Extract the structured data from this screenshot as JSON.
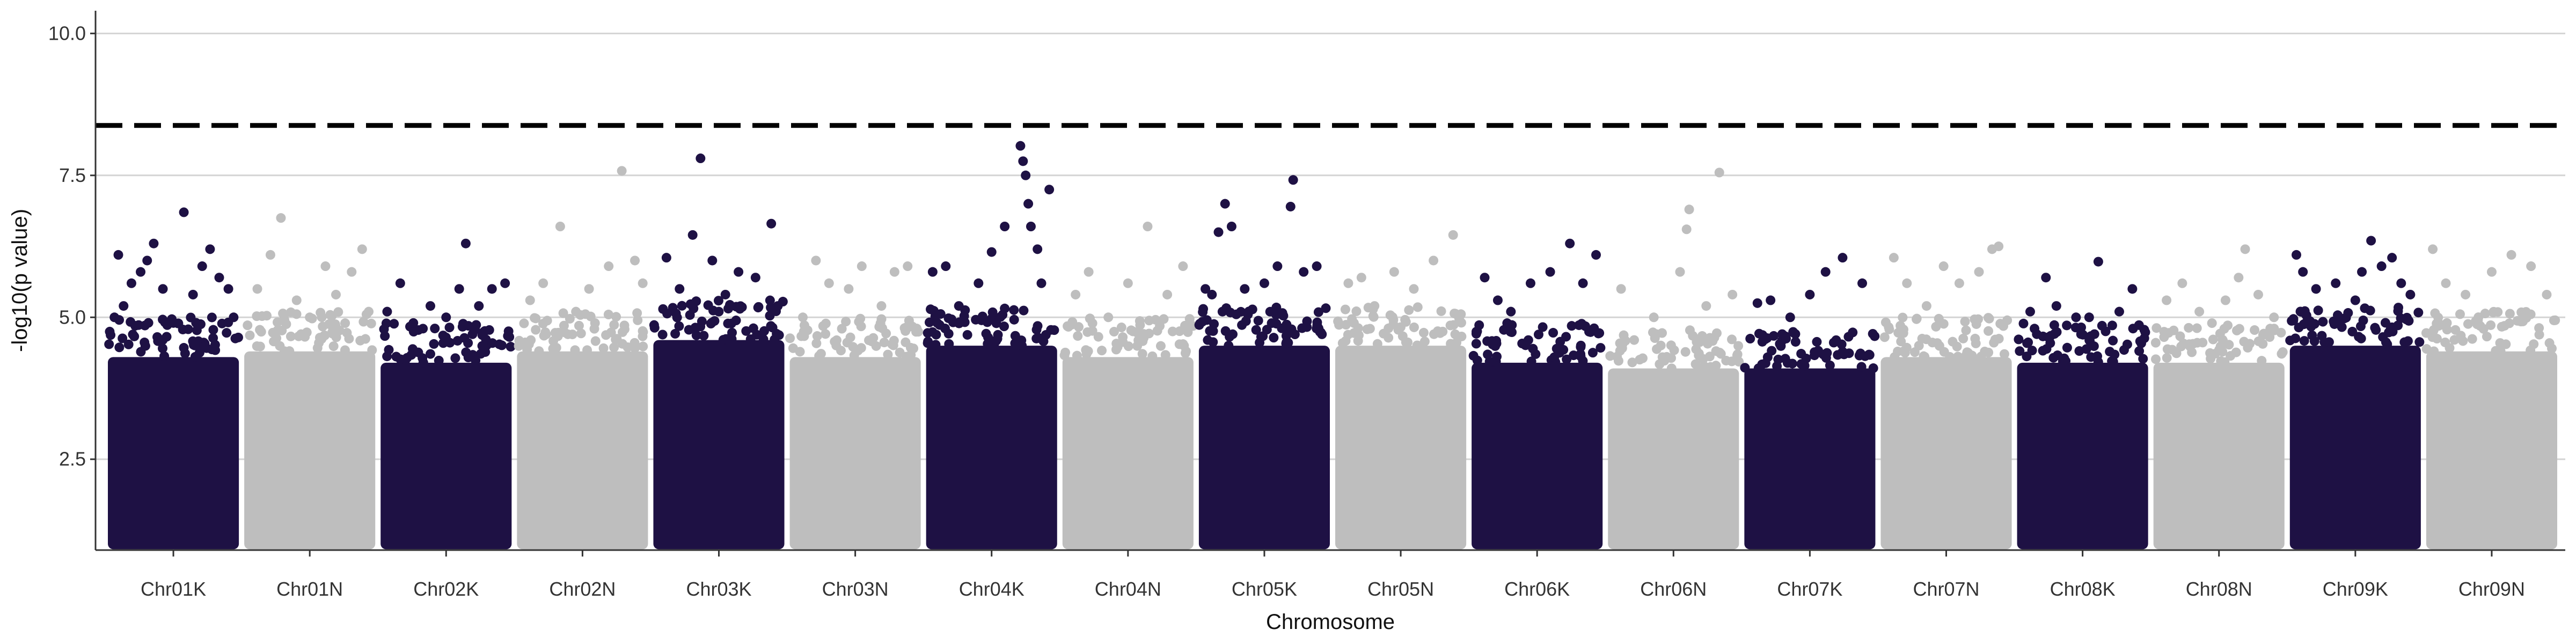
{
  "chart_data": {
    "type": "scatter",
    "subtype": "manhattan",
    "title": "",
    "xlabel": "Chromosome",
    "ylabel": "-log10(p value)",
    "ylim": [
      0.9,
      10.4
    ],
    "yticks": [
      2.5,
      5.0,
      7.5,
      10.0
    ],
    "ytick_labels": [
      "2.5",
      "5.0",
      "7.5",
      "10.0"
    ],
    "grid": "horizontal",
    "legend": "none",
    "threshold": 8.38,
    "threshold_style": "dashed",
    "base_value": 1.0,
    "colors": {
      "dark": "#1e1144",
      "light": "#bebebe",
      "threshold": "#000000",
      "grid": "#d4d4d4",
      "axis": "#333333"
    },
    "categories": [
      "Chr01K",
      "Chr01N",
      "Chr02K",
      "Chr02N",
      "Chr03K",
      "Chr03N",
      "Chr04K",
      "Chr04N",
      "Chr05K",
      "Chr05N",
      "Chr06K",
      "Chr06N",
      "Chr07K",
      "Chr07N",
      "Chr08K",
      "Chr08N",
      "Chr09K",
      "Chr09N"
    ],
    "series": [
      {
        "name": "Chr01K",
        "color": "dark",
        "bulk_top": 4.3,
        "points": [
          [
            0.05,
            5.0
          ],
          [
            0.08,
            6.1
          ],
          [
            0.12,
            5.2
          ],
          [
            0.18,
            5.6
          ],
          [
            0.25,
            5.8
          ],
          [
            0.3,
            6.0
          ],
          [
            0.35,
            6.3
          ],
          [
            0.42,
            5.5
          ],
          [
            0.5,
            4.9
          ],
          [
            0.58,
            6.85
          ],
          [
            0.65,
            5.4
          ],
          [
            0.72,
            5.9
          ],
          [
            0.78,
            6.2
          ],
          [
            0.85,
            5.7
          ],
          [
            0.92,
            5.5
          ],
          [
            0.96,
            5.0
          ]
        ]
      },
      {
        "name": "Chr01N",
        "color": "light",
        "bulk_top": 4.4,
        "points": [
          [
            0.1,
            5.5
          ],
          [
            0.2,
            6.1
          ],
          [
            0.28,
            6.75
          ],
          [
            0.4,
            5.3
          ],
          [
            0.5,
            5.0
          ],
          [
            0.62,
            5.9
          ],
          [
            0.7,
            5.4
          ],
          [
            0.82,
            5.8
          ],
          [
            0.9,
            6.2
          ],
          [
            0.95,
            5.1
          ]
        ]
      },
      {
        "name": "Chr02K",
        "color": "dark",
        "bulk_top": 4.2,
        "points": [
          [
            0.05,
            5.1
          ],
          [
            0.15,
            5.6
          ],
          [
            0.25,
            4.9
          ],
          [
            0.38,
            5.2
          ],
          [
            0.5,
            5.0
          ],
          [
            0.6,
            5.5
          ],
          [
            0.65,
            6.3
          ],
          [
            0.75,
            5.2
          ],
          [
            0.85,
            5.5
          ],
          [
            0.95,
            5.6
          ]
        ]
      },
      {
        "name": "Chr02N",
        "color": "light",
        "bulk_top": 4.4,
        "points": [
          [
            0.1,
            5.3
          ],
          [
            0.2,
            5.6
          ],
          [
            0.33,
            6.6
          ],
          [
            0.45,
            5.1
          ],
          [
            0.55,
            5.5
          ],
          [
            0.7,
            5.9
          ],
          [
            0.8,
            7.58
          ],
          [
            0.9,
            6.0
          ],
          [
            0.96,
            5.6
          ]
        ]
      },
      {
        "name": "Chr03K",
        "color": "dark",
        "bulk_top": 4.6,
        "points": [
          [
            0.1,
            6.05
          ],
          [
            0.2,
            5.5
          ],
          [
            0.3,
            6.45
          ],
          [
            0.36,
            7.8
          ],
          [
            0.45,
            6.0
          ],
          [
            0.55,
            5.4
          ],
          [
            0.65,
            5.8
          ],
          [
            0.78,
            5.7
          ],
          [
            0.9,
            6.65
          ],
          [
            0.95,
            5.2
          ]
        ]
      },
      {
        "name": "Chr03N",
        "color": "light",
        "bulk_top": 4.3,
        "points": [
          [
            0.1,
            5.0
          ],
          [
            0.2,
            6.0
          ],
          [
            0.3,
            5.6
          ],
          [
            0.45,
            5.5
          ],
          [
            0.55,
            5.9
          ],
          [
            0.7,
            5.2
          ],
          [
            0.8,
            5.8
          ],
          [
            0.9,
            5.9
          ]
        ]
      },
      {
        "name": "Chr04K",
        "color": "dark",
        "bulk_top": 4.5,
        "points": [
          [
            0.05,
            5.8
          ],
          [
            0.15,
            5.9
          ],
          [
            0.25,
            5.2
          ],
          [
            0.4,
            5.6
          ],
          [
            0.5,
            6.15
          ],
          [
            0.6,
            6.6
          ],
          [
            0.72,
            8.02
          ],
          [
            0.74,
            7.75
          ],
          [
            0.76,
            7.5
          ],
          [
            0.78,
            7.0
          ],
          [
            0.8,
            6.6
          ],
          [
            0.85,
            6.2
          ],
          [
            0.88,
            5.6
          ],
          [
            0.94,
            7.25
          ]
        ]
      },
      {
        "name": "Chr04N",
        "color": "light",
        "bulk_top": 4.3,
        "points": [
          [
            0.1,
            5.4
          ],
          [
            0.2,
            5.8
          ],
          [
            0.35,
            5.0
          ],
          [
            0.5,
            5.6
          ],
          [
            0.65,
            6.6
          ],
          [
            0.8,
            5.4
          ],
          [
            0.92,
            5.9
          ]
        ]
      },
      {
        "name": "Chr05K",
        "color": "dark",
        "bulk_top": 4.5,
        "points": [
          [
            0.05,
            5.5
          ],
          [
            0.1,
            5.4
          ],
          [
            0.15,
            6.5
          ],
          [
            0.2,
            7.0
          ],
          [
            0.25,
            6.6
          ],
          [
            0.35,
            5.5
          ],
          [
            0.5,
            5.6
          ],
          [
            0.6,
            5.9
          ],
          [
            0.7,
            6.95
          ],
          [
            0.72,
            7.42
          ],
          [
            0.8,
            5.8
          ],
          [
            0.9,
            5.9
          ]
        ]
      },
      {
        "name": "Chr05N",
        "color": "light",
        "bulk_top": 4.5,
        "points": [
          [
            0.1,
            5.6
          ],
          [
            0.2,
            5.7
          ],
          [
            0.3,
            5.2
          ],
          [
            0.45,
            5.8
          ],
          [
            0.6,
            5.5
          ],
          [
            0.75,
            6.0
          ],
          [
            0.9,
            6.45
          ]
        ]
      },
      {
        "name": "Chr06K",
        "color": "dark",
        "bulk_top": 4.2,
        "points": [
          [
            0.1,
            5.7
          ],
          [
            0.2,
            5.3
          ],
          [
            0.3,
            5.1
          ],
          [
            0.45,
            5.6
          ],
          [
            0.6,
            5.8
          ],
          [
            0.75,
            6.3
          ],
          [
            0.85,
            5.6
          ],
          [
            0.95,
            6.1
          ]
        ]
      },
      {
        "name": "Chr06N",
        "color": "light",
        "bulk_top": 4.1,
        "points": [
          [
            0.1,
            5.5
          ],
          [
            0.2,
            4.6
          ],
          [
            0.35,
            5.0
          ],
          [
            0.55,
            5.8
          ],
          [
            0.6,
            6.55
          ],
          [
            0.62,
            6.9
          ],
          [
            0.75,
            5.2
          ],
          [
            0.85,
            7.55
          ],
          [
            0.95,
            5.4
          ]
        ]
      },
      {
        "name": "Chr07K",
        "color": "dark",
        "bulk_top": 4.1,
        "points": [
          [
            0.1,
            5.25
          ],
          [
            0.2,
            5.3
          ],
          [
            0.35,
            5.0
          ],
          [
            0.5,
            5.4
          ],
          [
            0.62,
            5.8
          ],
          [
            0.75,
            6.05
          ],
          [
            0.9,
            5.6
          ]
        ]
      },
      {
        "name": "Chr07N",
        "color": "light",
        "bulk_top": 4.3,
        "points": [
          [
            0.1,
            6.05
          ],
          [
            0.2,
            5.6
          ],
          [
            0.35,
            5.2
          ],
          [
            0.48,
            5.9
          ],
          [
            0.6,
            5.6
          ],
          [
            0.75,
            5.8
          ],
          [
            0.85,
            6.2
          ],
          [
            0.9,
            6.25
          ]
        ]
      },
      {
        "name": "Chr08K",
        "color": "dark",
        "bulk_top": 4.2,
        "points": [
          [
            0.1,
            5.1
          ],
          [
            0.22,
            5.7
          ],
          [
            0.3,
            5.2
          ],
          [
            0.45,
            5.0
          ],
          [
            0.55,
            5.0
          ],
          [
            0.62,
            5.98
          ],
          [
            0.78,
            5.1
          ],
          [
            0.88,
            5.5
          ]
        ]
      },
      {
        "name": "Chr08N",
        "color": "light",
        "bulk_top": 4.2,
        "points": [
          [
            0.1,
            5.3
          ],
          [
            0.22,
            5.6
          ],
          [
            0.35,
            5.1
          ],
          [
            0.55,
            5.3
          ],
          [
            0.65,
            5.7
          ],
          [
            0.7,
            6.2
          ],
          [
            0.8,
            5.4
          ],
          [
            0.92,
            5.0
          ]
        ]
      },
      {
        "name": "Chr09K",
        "color": "dark",
        "bulk_top": 4.5,
        "points": [
          [
            0.05,
            6.1
          ],
          [
            0.1,
            5.8
          ],
          [
            0.2,
            5.5
          ],
          [
            0.35,
            5.6
          ],
          [
            0.5,
            5.3
          ],
          [
            0.55,
            5.8
          ],
          [
            0.62,
            6.35
          ],
          [
            0.7,
            5.9
          ],
          [
            0.78,
            6.05
          ],
          [
            0.85,
            5.6
          ],
          [
            0.92,
            5.4
          ]
        ]
      },
      {
        "name": "Chr09N",
        "color": "light",
        "bulk_top": 4.4,
        "points": [
          [
            0.05,
            6.2
          ],
          [
            0.15,
            5.6
          ],
          [
            0.3,
            5.4
          ],
          [
            0.5,
            5.8
          ],
          [
            0.65,
            6.1
          ],
          [
            0.8,
            5.9
          ],
          [
            0.92,
            5.4
          ]
        ]
      }
    ]
  }
}
